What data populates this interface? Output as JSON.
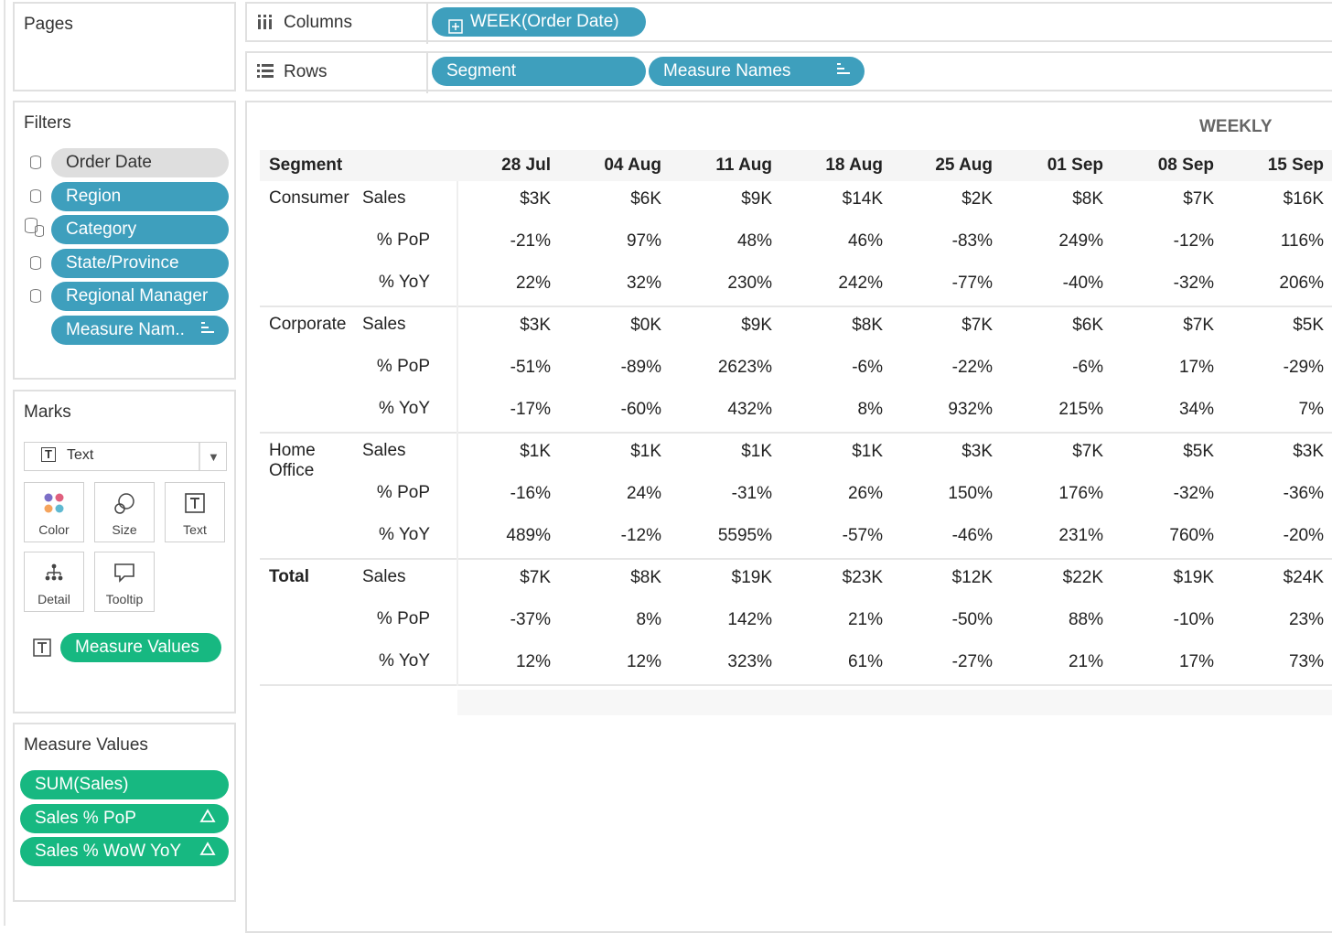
{
  "pages": {
    "title": "Pages"
  },
  "filters": {
    "title": "Filters",
    "items": [
      "Order Date",
      "Region",
      "Category",
      "State/Province",
      "Regional Manager",
      "Measure Nam.."
    ]
  },
  "marks": {
    "title": "Marks",
    "type_selected": "Text",
    "buttons": [
      "Color",
      "Size",
      "Text",
      "Detail",
      "Tooltip"
    ],
    "text_pill": "Measure Values"
  },
  "measure_values": {
    "title": "Measure Values",
    "items": [
      "SUM(Sales)",
      "Sales % PoP",
      "Sales % WoW YoY"
    ]
  },
  "columns_shelf": {
    "label": "Columns",
    "pill": "WEEK(Order Date)"
  },
  "rows_shelf": {
    "label": "Rows",
    "pills": [
      "Segment",
      "Measure Names"
    ]
  },
  "view": {
    "header_caption": "WEEKLY",
    "segment_header": "Segment",
    "columns": [
      "28 Jul",
      "04 Aug",
      "11 Aug",
      "18 Aug",
      "25 Aug",
      "01 Sep",
      "08 Sep",
      "15 Sep"
    ],
    "groups": [
      {
        "segment": "Consumer",
        "rows": [
          {
            "measure": "Sales",
            "values": [
              "$3K",
              "$6K",
              "$9K",
              "$14K",
              "$2K",
              "$8K",
              "$7K",
              "$16K"
            ]
          },
          {
            "measure": "% PoP",
            "values": [
              "-21%",
              "97%",
              "48%",
              "46%",
              "-83%",
              "249%",
              "-12%",
              "116%"
            ]
          },
          {
            "measure": "% YoY",
            "values": [
              "22%",
              "32%",
              "230%",
              "242%",
              "-77%",
              "-40%",
              "-32%",
              "206%"
            ]
          }
        ]
      },
      {
        "segment": "Corporate",
        "rows": [
          {
            "measure": "Sales",
            "values": [
              "$3K",
              "$0K",
              "$9K",
              "$8K",
              "$7K",
              "$6K",
              "$7K",
              "$5K"
            ]
          },
          {
            "measure": "% PoP",
            "values": [
              "-51%",
              "-89%",
              "2623%",
              "-6%",
              "-22%",
              "-6%",
              "17%",
              "-29%"
            ]
          },
          {
            "measure": "% YoY",
            "values": [
              "-17%",
              "-60%",
              "432%",
              "8%",
              "932%",
              "215%",
              "34%",
              "7%"
            ]
          }
        ]
      },
      {
        "segment": "Home Office",
        "rows": [
          {
            "measure": "Sales",
            "values": [
              "$1K",
              "$1K",
              "$1K",
              "$1K",
              "$3K",
              "$7K",
              "$5K",
              "$3K"
            ]
          },
          {
            "measure": "% PoP",
            "values": [
              "-16%",
              "24%",
              "-31%",
              "26%",
              "150%",
              "176%",
              "-32%",
              "-36%"
            ]
          },
          {
            "measure": "% YoY",
            "values": [
              "489%",
              "-12%",
              "5595%",
              "-57%",
              "-46%",
              "231%",
              "760%",
              "-20%"
            ]
          }
        ]
      },
      {
        "segment": "Total",
        "bold": true,
        "rows": [
          {
            "measure": "Sales",
            "values": [
              "$7K",
              "$8K",
              "$19K",
              "$23K",
              "$12K",
              "$22K",
              "$19K",
              "$24K"
            ]
          },
          {
            "measure": "% PoP",
            "values": [
              "-37%",
              "8%",
              "142%",
              "21%",
              "-50%",
              "88%",
              "-10%",
              "23%"
            ]
          },
          {
            "measure": "% YoY",
            "values": [
              "12%",
              "12%",
              "323%",
              "61%",
              "-27%",
              "21%",
              "17%",
              "73%"
            ]
          }
        ]
      }
    ]
  },
  "colors": {
    "dimension_pill": "#3e9fbd",
    "measure_pill": "#17b881",
    "disabled_pill": "#dedede"
  }
}
